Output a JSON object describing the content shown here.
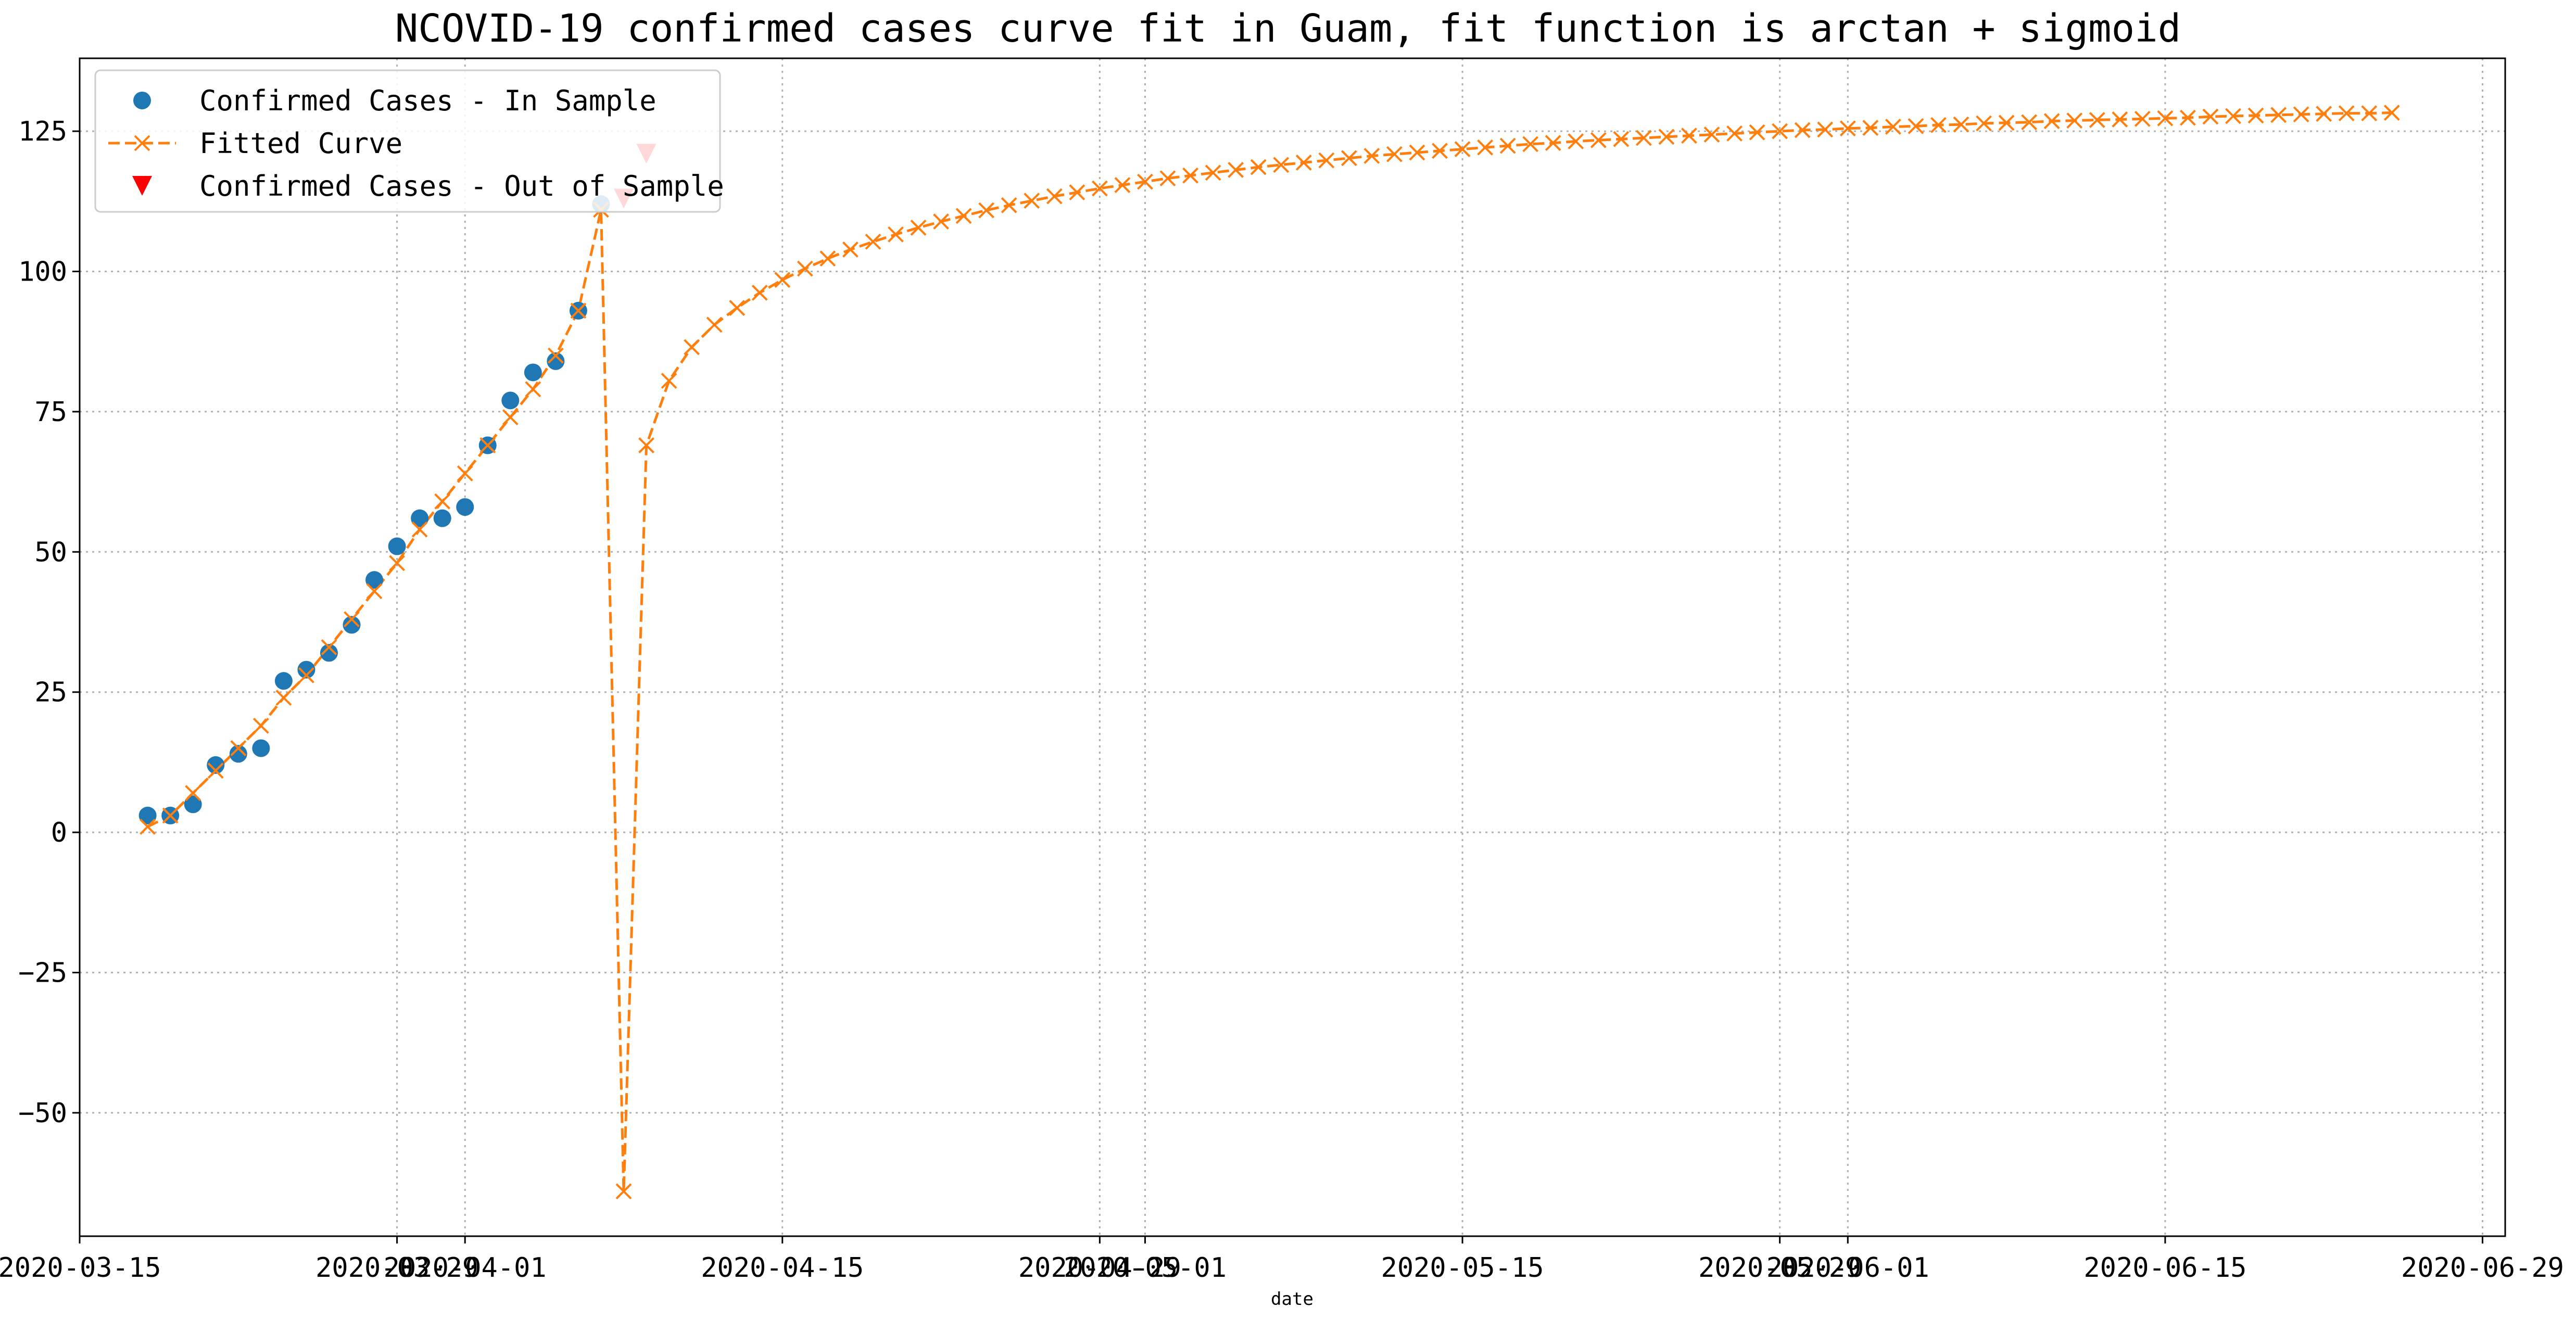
{
  "chart_data": {
    "type": "line",
    "title": "NCOVID-19 confirmed cases curve fit in Guam, fit function is arctan + sigmoid",
    "xlabel": "date",
    "ylabel": "",
    "xlim": [
      "2020-03-15",
      "2020-06-30"
    ],
    "ylim": [
      -72,
      138
    ],
    "grid": true,
    "legend_position": "top-left",
    "x_ticks": [
      "2020-03-15",
      "2020-03-29",
      "2020-04-01",
      "2020-04-15",
      "2020-04-29",
      "2020-05-01",
      "2020-05-15",
      "2020-05-29",
      "2020-06-01",
      "2020-06-15",
      "2020-06-29"
    ],
    "y_ticks": [
      -50,
      -25,
      0,
      25,
      50,
      75,
      100,
      125
    ],
    "y_tick_labels": [
      "−50",
      "−25",
      "0",
      "25",
      "50",
      "75",
      "100",
      "125"
    ],
    "series": [
      {
        "name": "Confirmed Cases - In Sample",
        "marker": "circle",
        "color": "#1f77b4",
        "x": [
          "2020-03-18",
          "2020-03-19",
          "2020-03-20",
          "2020-03-21",
          "2020-03-22",
          "2020-03-23",
          "2020-03-24",
          "2020-03-25",
          "2020-03-26",
          "2020-03-27",
          "2020-03-28",
          "2020-03-29",
          "2020-03-30",
          "2020-03-31",
          "2020-04-01",
          "2020-04-02",
          "2020-04-03",
          "2020-04-04",
          "2020-04-05",
          "2020-04-06",
          "2020-04-07"
        ],
        "values": [
          3,
          3,
          5,
          12,
          14,
          15,
          27,
          29,
          32,
          37,
          45,
          51,
          56,
          56,
          58,
          69,
          77,
          82,
          84,
          93,
          112
        ]
      },
      {
        "name": "Fitted Curve",
        "marker": "x",
        "line": "dashed",
        "color": "#ff7f0e",
        "start_date": "2020-03-18",
        "values": [
          1,
          3,
          7,
          11,
          15,
          19,
          24,
          28,
          33,
          38,
          43,
          48,
          54,
          59,
          64,
          69,
          74,
          79,
          85,
          93,
          111,
          -64,
          69,
          80.5,
          86.5,
          90.5,
          93.5,
          96.2,
          98.5,
          100.5,
          102.3,
          103.9,
          105.3,
          106.6,
          107.8,
          108.9,
          109.9,
          110.9,
          111.8,
          112.6,
          113.4,
          114.1,
          114.8,
          115.4,
          116.0,
          116.6,
          117.1,
          117.6,
          118.1,
          118.6,
          119.0,
          119.4,
          119.8,
          120.2,
          120.6,
          120.9,
          121.2,
          121.5,
          121.8,
          122.1,
          122.4,
          122.7,
          122.9,
          123.2,
          123.4,
          123.6,
          123.8,
          124.0,
          124.2,
          124.4,
          124.6,
          124.8,
          125.0,
          125.2,
          125.3,
          125.5,
          125.6,
          125.8,
          125.9,
          126.1,
          126.2,
          126.4,
          126.5,
          126.6,
          126.8,
          126.9,
          127.0,
          127.1,
          127.2,
          127.3,
          127.4,
          127.6,
          127.7,
          127.8,
          127.9,
          128.0,
          128.1,
          128.2,
          128.2,
          128.3
        ]
      },
      {
        "name": "Confirmed Cases - Out of Sample",
        "marker": "triangle_down",
        "color": "#ff0000",
        "x": [
          "2020-04-08",
          "2020-04-09"
        ],
        "values": [
          113,
          121
        ]
      }
    ]
  }
}
